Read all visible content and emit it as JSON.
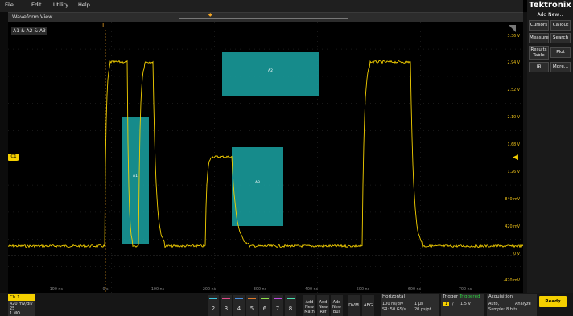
{
  "menu": {
    "items": [
      "File",
      "Edit",
      "Utility",
      "Help"
    ]
  },
  "waveform_view": {
    "title": "Waveform View",
    "badge": "A1 & A2 & A3"
  },
  "y_axis": {
    "labels": [
      "3.36 V",
      "2.94 V",
      "2.52 V",
      "2.10 V",
      "1.68 V",
      "1.26 V",
      "840 mV",
      "420 mV",
      "0 V",
      "-420 mV"
    ]
  },
  "x_axis": {
    "labels": [
      "-100 ns",
      "0 s",
      "100 ns",
      "200 ns",
      "300 ns",
      "400 ns",
      "500 ns",
      "600 ns",
      "700 ns"
    ]
  },
  "areas": {
    "a1": "A1",
    "a2": "A2",
    "a3": "A3"
  },
  "channel_marker": "C1",
  "trigger_marker": "T",
  "right_panel": {
    "brand": "Tektronix",
    "add_new": "Add New...",
    "buttons": [
      "Cursors",
      "Callout",
      "Measure",
      "Search",
      "Results Table",
      "Plot",
      "More..."
    ]
  },
  "ch1": {
    "label": "Ch 1",
    "scale": "420 mV/div",
    "extra1": "25",
    "extra2": "1 MΩ"
  },
  "channel_buttons": [
    "2",
    "3",
    "4",
    "5",
    "6",
    "7",
    "8"
  ],
  "add_buttons": [
    {
      "l1": "Add",
      "l2": "New",
      "l3": "Math"
    },
    {
      "l1": "Add",
      "l2": "New",
      "l3": "Ref"
    },
    {
      "l1": "Add",
      "l2": "New",
      "l3": "Bus"
    }
  ],
  "tools": [
    "DVM",
    "AFG"
  ],
  "horizontal": {
    "title": "Horizontal",
    "scale": "100 ns/div",
    "record": "1 μs",
    "sample_rate": "SR: 50 GS/s",
    "pt": "20 ps/pt"
  },
  "trigger": {
    "title": "Trigger",
    "status": "Triggered",
    "source": "1",
    "slope": "/",
    "level": "1.5 V"
  },
  "acquisition": {
    "title": "Acquisition",
    "mode": "Auto,",
    "state": "Analyze",
    "sample": "Sample: 8 bits"
  },
  "status": "Ready",
  "colors": {
    "trace": "#f5d000",
    "area_fill": "#1aa3a3",
    "trigger": "#f5a623",
    "triggered": "#2ecc40",
    "accent": "#f5d000"
  }
}
